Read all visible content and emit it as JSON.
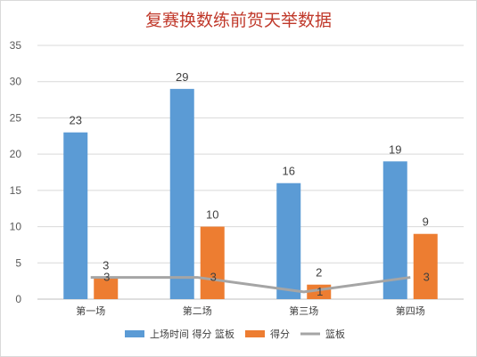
{
  "chart_data": {
    "type": "bar",
    "title": "复赛换数练前贺天举数据",
    "categories": [
      "第一场",
      "第二场",
      "第三场",
      "第四场"
    ],
    "ylim": [
      0,
      35
    ],
    "yticks": [
      0,
      5,
      10,
      15,
      20,
      25,
      30,
      35
    ],
    "grid": true,
    "legend_position": "bottom",
    "series": [
      {
        "name": "上场时间 得分 篮板",
        "kind": "bar",
        "color": "#5b9bd5",
        "values": [
          23,
          29,
          16,
          19
        ]
      },
      {
        "name": "得分",
        "kind": "bar",
        "color": "#ed7d31",
        "values": [
          3,
          10,
          2,
          9
        ]
      },
      {
        "name": "篮板",
        "kind": "line",
        "color": "#a5a5a5",
        "values": [
          3,
          3,
          1,
          3
        ]
      }
    ]
  }
}
